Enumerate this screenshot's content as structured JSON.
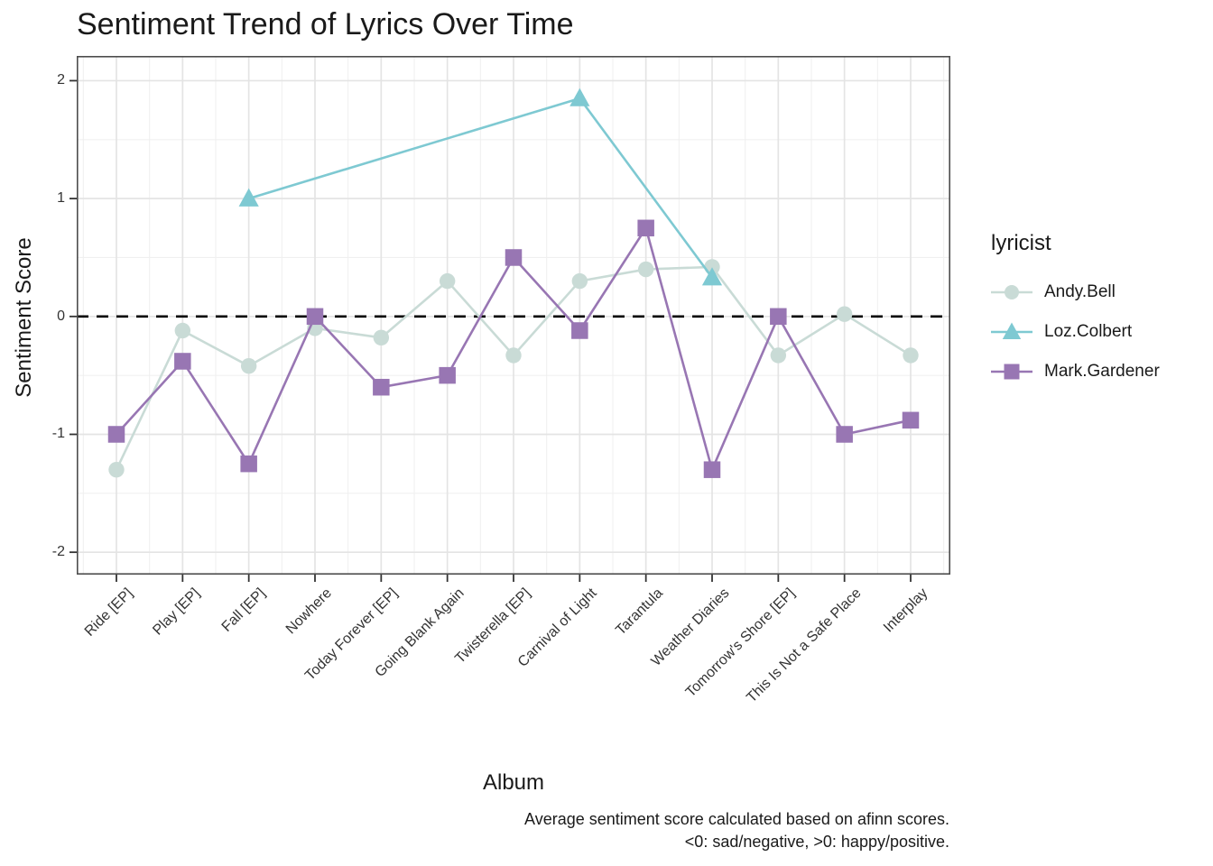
{
  "title": "Sentiment Trend of Lyrics Over Time",
  "axes": {
    "x_label": "Album",
    "y_label": "Sentiment Score"
  },
  "caption": {
    "line1": "Average sentiment score calculated based on afinn scores.",
    "line2": "<0: sad/negative, >0: happy/positive."
  },
  "legend": {
    "title": "lyricist",
    "entries": [
      {
        "label": "Andy.Bell",
        "color": "#c9dbd6",
        "shape": "circle"
      },
      {
        "label": "Loz.Colbert",
        "color": "#7ec9d2",
        "shape": "triangle"
      },
      {
        "label": "Mark.Gardener",
        "color": "#9876b3",
        "shape": "square"
      }
    ]
  },
  "chart_data": {
    "type": "line",
    "title": "Sentiment Trend of Lyrics Over Time",
    "xlabel": "Album",
    "ylabel": "Sentiment Score",
    "categories": [
      "Ride [EP]",
      "Play [EP]",
      "Fall [EP]",
      "Nowhere",
      "Today Forever [EP]",
      "Going Blank Again",
      "Twisterella [EP]",
      "Carnival of Light",
      "Tarantula",
      "Weather Diaries",
      "Tomorrow's Shore [EP]",
      "This Is Not a Safe Place",
      "Interplay"
    ],
    "series": [
      {
        "name": "Andy.Bell",
        "shape": "circle",
        "color": "#c9dbd6",
        "values": [
          -1.3,
          -0.12,
          -0.42,
          -0.1,
          -0.18,
          0.3,
          -0.33,
          0.3,
          0.4,
          0.42,
          -0.33,
          0.02,
          -0.33
        ]
      },
      {
        "name": "Loz.Colbert",
        "shape": "triangle",
        "color": "#7ec9d2",
        "values": [
          null,
          null,
          1.0,
          null,
          null,
          null,
          null,
          1.85,
          null,
          0.33,
          null,
          null,
          null
        ]
      },
      {
        "name": "Mark.Gardener",
        "shape": "square",
        "color": "#9876b3",
        "values": [
          -1.0,
          -0.38,
          -1.25,
          0.0,
          -0.6,
          -0.5,
          0.5,
          -0.12,
          0.75,
          -1.3,
          0.0,
          -1.0,
          -0.88
        ]
      }
    ],
    "y_ticks": [
      2,
      1,
      0,
      -1,
      -2
    ],
    "ylim": [
      -2.19,
      2.21
    ],
    "hline": {
      "y": 0,
      "linetype": "dashed",
      "color": "#000000"
    },
    "grid": true,
    "legend_position": "right"
  }
}
